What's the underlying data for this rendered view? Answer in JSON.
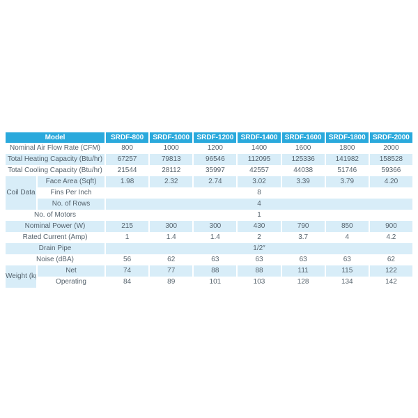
{
  "colors": {
    "header_bg": "#2AA9DC",
    "stripe_bg": "#D8EDF8",
    "row_bg": "#FFFFFF",
    "header_text": "#FFFFFF",
    "body_text": "#55626C"
  },
  "chart_data": {
    "type": "table",
    "title": "",
    "corner_label": "Model",
    "columns": [
      "SRDF-800",
      "SRDF-1000",
      "SRDF-1200",
      "SRDF-1400",
      "SRDF-1600",
      "SRDF-1800",
      "SRDF-2000"
    ],
    "rows": [
      {
        "label": "Nominal Air Flow Rate (CFM)",
        "values": [
          "800",
          "1000",
          "1200",
          "1400",
          "1600",
          "1800",
          "2000"
        ]
      },
      {
        "label": "Total Heating Capacity (Btu/hr)",
        "values": [
          "67257",
          "79813",
          "96546",
          "112095",
          "125336",
          "141982",
          "158528"
        ]
      },
      {
        "label": "Total Cooling Capacity (Btu/hr)",
        "values": [
          "21544",
          "28112",
          "35997",
          "42557",
          "44038",
          "51746",
          "59366"
        ]
      },
      {
        "group": "Coil Data",
        "label": "Face Area (Sqft)",
        "values": [
          "1.98",
          "2.32",
          "2.74",
          "3.02",
          "3.39",
          "3.79",
          "4.20"
        ]
      },
      {
        "group": "Coil Data",
        "label": "Fins Per Inch",
        "merged_value": "8"
      },
      {
        "group": "Coil Data",
        "label": "No. of Rows",
        "merged_value": "4"
      },
      {
        "label": "No. of  Motors",
        "merged_value": "1"
      },
      {
        "label": "Nominal Power (W)",
        "values": [
          "215",
          "300",
          "300",
          "430",
          "790",
          "850",
          "900"
        ]
      },
      {
        "label": "Rated Current (Amp)",
        "values": [
          "1",
          "1.4",
          "1.4",
          "2",
          "3.7",
          "4",
          "4.2"
        ]
      },
      {
        "label": "Drain Pipe",
        "merged_value": "1/2″"
      },
      {
        "label": "Noise (dBA)",
        "values": [
          "56",
          "62",
          "63",
          "63",
          "63",
          "63",
          "62"
        ]
      },
      {
        "group": "Weight (kg)",
        "label": "Net",
        "values": [
          "74",
          "77",
          "88",
          "88",
          "111",
          "115",
          "122"
        ]
      },
      {
        "group": "Weight (kg)",
        "label": "Operating",
        "values": [
          "84",
          "89",
          "101",
          "103",
          "128",
          "134",
          "142"
        ]
      }
    ]
  }
}
